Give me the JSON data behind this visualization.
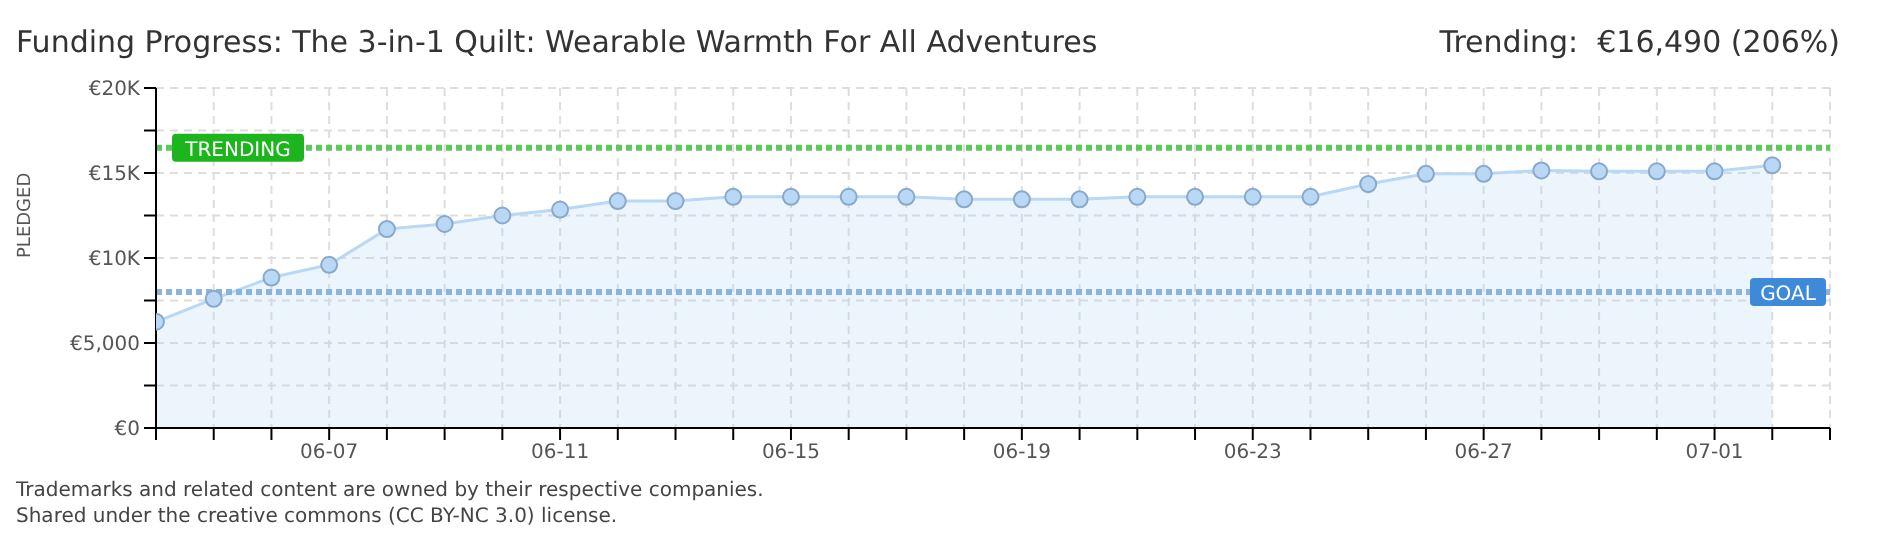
{
  "chart_data": {
    "type": "area",
    "title": "Funding Progress: The 3-in-1 Quilt: Wearable Warmth For All Adventures",
    "ylabel": "PLEDGED",
    "annotations": [
      "Trending:  €16,490 (206%)",
      "Trademarks and related content are owned by their respective companies.",
      "Shared under the creative commons (CC BY-NC 3.0) license."
    ],
    "x": [
      "--06-04",
      "--06-05",
      "--06-06",
      "--06-07",
      "--06-08",
      "--06-09",
      "--06-10",
      "--06-11",
      "--06-12",
      "--06-13",
      "--06-14",
      "--06-15",
      "--06-16",
      "--06-17",
      "--06-18",
      "--06-19",
      "--06-20",
      "--06-21",
      "--06-22",
      "--06-23",
      "--06-24",
      "--06-25",
      "--06-26",
      "--06-27",
      "--06-28",
      "--06-29",
      "--06-30",
      "--07-01",
      "--07-02"
    ],
    "series": [
      {
        "color": "#b8d8f5",
        "values": [
          6250,
          7600,
          8850,
          9600,
          11700,
          12000,
          12500,
          12850,
          13350,
          13350,
          13600,
          13600,
          13600,
          13600,
          13450,
          13450,
          13450,
          13600,
          13600,
          13600,
          13600,
          14350,
          14950,
          14950,
          15150,
          15100,
          15100,
          15100,
          15450
        ]
      }
    ],
    "xlim": [
      "--06-04",
      "--07-03"
    ],
    "xticks": [
      {
        "value": "--06-04",
        "label": null
      },
      {
        "value": "--06-05",
        "label": null
      },
      {
        "value": "--06-06",
        "label": null
      },
      {
        "value": "--06-07",
        "label": "06-07"
      },
      {
        "value": "--06-08",
        "label": null
      },
      {
        "value": "--06-09",
        "label": null
      },
      {
        "value": "--06-10",
        "label": null
      },
      {
        "value": "--06-11",
        "label": "06-11"
      },
      {
        "value": "--06-12",
        "label": null
      },
      {
        "value": "--06-13",
        "label": null
      },
      {
        "value": "--06-14",
        "label": null
      },
      {
        "value": "--06-15",
        "label": "06-15"
      },
      {
        "value": "--06-16",
        "label": null
      },
      {
        "value": "--06-17",
        "label": null
      },
      {
        "value": "--06-18",
        "label": null
      },
      {
        "value": "--06-19",
        "label": "06-19"
      },
      {
        "value": "--06-20",
        "label": null
      },
      {
        "value": "--06-21",
        "label": null
      },
      {
        "value": "--06-22",
        "label": null
      },
      {
        "value": "--06-23",
        "label": "06-23"
      },
      {
        "value": "--06-24",
        "label": null
      },
      {
        "value": "--06-25",
        "label": null
      },
      {
        "value": "--06-26",
        "label": null
      },
      {
        "value": "--06-27",
        "label": "06-27"
      },
      {
        "value": "--06-28",
        "label": null
      },
      {
        "value": "--06-29",
        "label": null
      },
      {
        "value": "--06-30",
        "label": null
      },
      {
        "value": "--07-01",
        "label": "07-01"
      },
      {
        "value": "--07-02",
        "label": null
      },
      {
        "value": "--07-03",
        "label": null
      }
    ],
    "ylim": [
      0,
      20000
    ],
    "yticks": [
      {
        "value": 0,
        "label": "€0"
      },
      {
        "value": 2500,
        "label": null
      },
      {
        "value": 5000,
        "label": "€5,000"
      },
      {
        "value": 7500,
        "label": null
      },
      {
        "value": 10000,
        "label": "€10K"
      },
      {
        "value": 12500,
        "label": null
      },
      {
        "value": 15000,
        "label": "€15K"
      },
      {
        "value": 17500,
        "label": null
      },
      {
        "value": 20000,
        "label": "€20K"
      }
    ],
    "ref_lines": [
      {
        "axis": "y",
        "value": 16490,
        "label": "TRENDING",
        "color": "#5cc85c",
        "line_style": "dotted"
      },
      {
        "axis": "y",
        "value": 8000,
        "label": "GOAL",
        "color": "#8ab4e0",
        "line_style": "dotted"
      }
    ],
    "grid": true,
    "marker": "circle"
  }
}
